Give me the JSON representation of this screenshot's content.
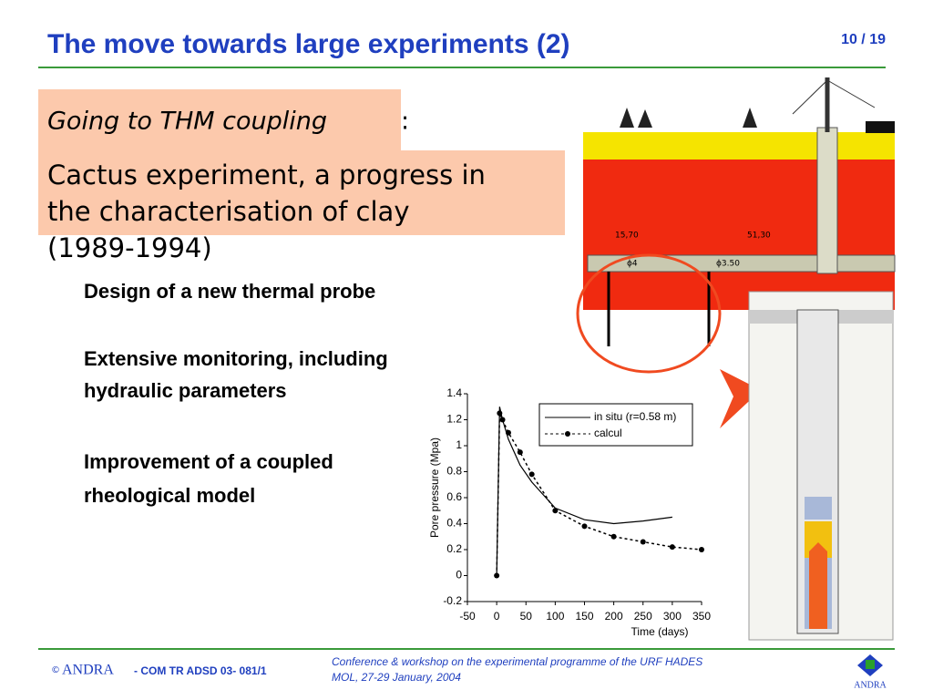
{
  "header": {
    "title": "The move towards large experiments (2)",
    "page": "10 / 19"
  },
  "intro": {
    "heading": "Going to THM coupling",
    "colon": ":",
    "subheading_1": "Cactus experiment, a progress in",
    "subheading_2": "the  characterisation of clay",
    "years": "(1989-1994)"
  },
  "bullets": [
    [
      "Design of a new thermal probe"
    ],
    [
      "Extensive monitoring, including",
      "hydraulic parameters"
    ],
    [
      "Improvement of a coupled",
      "rheological model"
    ]
  ],
  "drawing_labels": [
    "15,70",
    "51,30",
    "ϕ4",
    "ϕ3.50"
  ],
  "chart_data": {
    "type": "line",
    "xlabel": "Time (days)",
    "ylabel": "Pore pressure (Mpa)",
    "x": [
      0,
      5,
      10,
      20,
      40,
      60,
      100,
      150,
      200,
      250,
      300,
      350
    ],
    "series": [
      {
        "name": "in situ (r=0.58 m)",
        "color": "#000000",
        "values": [
          0,
          1.3,
          1.2,
          1.05,
          0.85,
          0.72,
          0.52,
          0.43,
          0.4,
          0.42,
          0.45,
          null
        ]
      },
      {
        "name": "calcul",
        "color": "#000000",
        "values": [
          0,
          1.25,
          1.2,
          1.1,
          0.95,
          0.78,
          0.5,
          0.38,
          0.3,
          0.26,
          0.22,
          0.2
        ]
      }
    ],
    "xlim": [
      -50,
      350
    ],
    "ylim": [
      -0.2,
      1.4
    ],
    "xticks": [
      -50,
      0,
      50,
      100,
      150,
      200,
      250,
      300,
      350
    ],
    "yticks": [
      -0.2,
      0,
      0.2,
      0.4,
      0.6,
      0.8,
      1,
      1.2,
      1.4
    ]
  },
  "footer": {
    "copyright": "©",
    "org": "ANDRA",
    "ref": "- COM TR ADSD 03- 081/1",
    "conference": "Conference & workshop on the experimental programme of the URF HADES",
    "place": "MOL,  27-29 January, 2004",
    "logo": "ANDRA"
  }
}
